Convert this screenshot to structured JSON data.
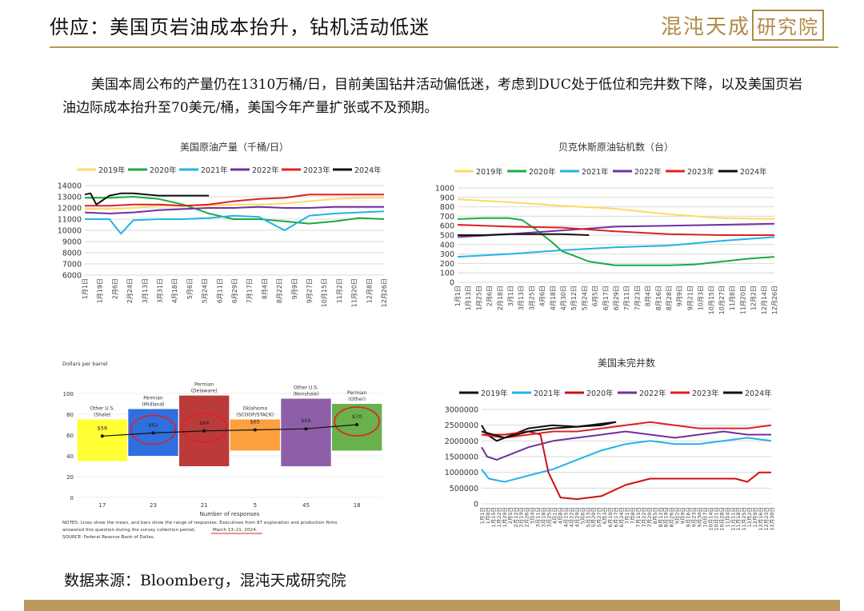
{
  "header": {
    "title": "供应：美国页岩油成本抬升，钻机活动低迷",
    "logo_main": "混沌天成",
    "logo_box": "研究院"
  },
  "paragraph": "美国本周公布的产量仍在1310万桶/日，目前美国钻井活动偏低迷，考虑到DUC处于低位和完井数下降，以及美国页岩油边际成本抬升至70美元/桶，美国今年产量扩张或不及预期。",
  "footer": {
    "source": "数据来源：Bloomberg，混沌天成研究院"
  },
  "colors": {
    "gold": "#b99a5c",
    "y2019": "#ffd966",
    "y2020": "#1aab40",
    "y2021": "#22b3e6",
    "y2022": "#7030a0",
    "y2023": "#dd2222",
    "y2024": "#111111"
  },
  "chart_data": [
    {
      "type": "line",
      "title": "美国原油产量（千桶/日）",
      "ylim": [
        6000,
        14000
      ],
      "yticks": [
        "14000",
        "13000",
        "12000",
        "11000",
        "10000",
        "9000",
        "8000",
        "7000",
        "6000"
      ],
      "xticks": [
        "1月1日",
        "1月19日",
        "2月6日",
        "2月24日",
        "3月13日",
        "3月31日",
        "4月18日",
        "5月6日",
        "5月24日",
        "6月11日",
        "6月29日",
        "7月17日",
        "8月4日",
        "8月22日",
        "9月9日",
        "9月27日",
        "10月15日",
        "11月2日",
        "11月20日",
        "12月8日",
        "12月26日"
      ],
      "x_start": "1月1日",
      "x_end": "12月31日",
      "series": [
        {
          "name": "2019年",
          "color": "#ffd966",
          "x": [
            1,
            31,
            60,
            91,
            121,
            152,
            182,
            213,
            244,
            274,
            305,
            335,
            365
          ],
          "y": [
            11900,
            11900,
            12000,
            12200,
            12200,
            12200,
            12300,
            12300,
            12400,
            12600,
            12800,
            12900,
            12900
          ]
        },
        {
          "name": "2020年",
          "color": "#1aab40",
          "x": [
            1,
            31,
            60,
            91,
            121,
            152,
            182,
            213,
            244,
            274,
            305,
            335,
            365
          ],
          "y": [
            12900,
            12900,
            13000,
            12800,
            12300,
            11500,
            11000,
            11000,
            10800,
            10600,
            10800,
            11100,
            11000
          ]
        },
        {
          "name": "2021年",
          "color": "#22b3e6",
          "x": [
            1,
            31,
            45,
            60,
            91,
            121,
            152,
            182,
            213,
            244,
            274,
            305,
            335,
            365
          ],
          "y": [
            11000,
            11000,
            9700,
            10900,
            11000,
            11000,
            11100,
            11300,
            11200,
            10000,
            11300,
            11500,
            11600,
            11700
          ]
        },
        {
          "name": "2022年",
          "color": "#7030a0",
          "x": [
            1,
            31,
            60,
            91,
            121,
            152,
            182,
            213,
            244,
            274,
            305,
            335,
            365
          ],
          "y": [
            11600,
            11500,
            11600,
            11800,
            11900,
            12000,
            12000,
            12100,
            12000,
            12000,
            12100,
            12100,
            12100
          ]
        },
        {
          "name": "2023年",
          "color": "#dd2222",
          "x": [
            1,
            31,
            60,
            91,
            121,
            152,
            182,
            213,
            244,
            274,
            305,
            335,
            365
          ],
          "y": [
            12200,
            12200,
            12300,
            12300,
            12200,
            12300,
            12600,
            12800,
            12900,
            13200,
            13200,
            13200,
            13200
          ]
        },
        {
          "name": "2024年",
          "color": "#111111",
          "x": [
            1,
            8,
            15,
            31,
            45,
            60,
            91,
            121,
            152
          ],
          "y": [
            13200,
            13300,
            12300,
            13100,
            13300,
            13300,
            13100,
            13100,
            13100
          ]
        }
      ]
    },
    {
      "type": "line",
      "title": "贝克休斯原油钻机数（台）",
      "ylim": [
        0,
        1000
      ],
      "yticks": [
        "1000",
        "900",
        "800",
        "700",
        "600",
        "500",
        "400",
        "300",
        "200",
        "100",
        "0"
      ],
      "xticks": [
        "1月1日",
        "1月13日",
        "1月25日",
        "2月6日",
        "2月18日",
        "3月1日",
        "3月13日",
        "3月25日",
        "4月6日",
        "4月18日",
        "4月30日",
        "5月12日",
        "5月24日",
        "6月5日",
        "6月17日",
        "6月29日",
        "7月11日",
        "7月23日",
        "8月4日",
        "8月16日",
        "8月28日",
        "9月9日",
        "9月21日",
        "10月3日",
        "10月15日",
        "10月27日",
        "11月8日",
        "11月20日",
        "12月2日",
        "12月14日",
        "12月26日"
      ],
      "x_start": "1月1日",
      "x_end": "12月31日",
      "series": [
        {
          "name": "2019年",
          "color": "#ffd966",
          "x": [
            1,
            60,
            121,
            182,
            244,
            305,
            365
          ],
          "y": [
            880,
            850,
            810,
            780,
            720,
            680,
            670
          ]
        },
        {
          "name": "2020年",
          "color": "#1aab40",
          "x": [
            1,
            31,
            60,
            75,
            91,
            110,
            121,
            152,
            182,
            213,
            244,
            274,
            305,
            335,
            365
          ],
          "y": [
            670,
            680,
            680,
            660,
            560,
            420,
            330,
            220,
            180,
            180,
            180,
            190,
            220,
            250,
            270
          ]
        },
        {
          "name": "2021年",
          "color": "#22b3e6",
          "x": [
            1,
            60,
            121,
            182,
            244,
            305,
            365
          ],
          "y": [
            270,
            300,
            340,
            370,
            390,
            440,
            480
          ]
        },
        {
          "name": "2022年",
          "color": "#7030a0",
          "x": [
            1,
            60,
            121,
            182,
            244,
            305,
            365
          ],
          "y": [
            480,
            510,
            550,
            590,
            600,
            610,
            620
          ]
        },
        {
          "name": "2023年",
          "color": "#dd2222",
          "x": [
            1,
            60,
            121,
            182,
            244,
            305,
            365
          ],
          "y": [
            610,
            590,
            580,
            540,
            510,
            500,
            500
          ]
        },
        {
          "name": "2024年",
          "color": "#111111",
          "x": [
            1,
            31,
            60,
            91,
            121,
            152
          ],
          "y": [
            500,
            500,
            510,
            510,
            510,
            500
          ]
        }
      ]
    },
    {
      "type": "bar",
      "ylabel": "Dollars per barrel",
      "xlabel": "Number of responses",
      "ylim": [
        0,
        100
      ],
      "yticks": [
        "100",
        "80",
        "60",
        "40",
        "20",
        "0"
      ],
      "categories": [
        "17",
        "23",
        "21",
        "5",
        "45",
        "18"
      ],
      "bar_labels": [
        "Other U.S.\n(Shale)",
        "Permian\n(Midland)",
        "Permian\n(Delaware)",
        "Oklahoma\n(SCOOP/STACK)",
        "Other U.S.\n(Nonshale)",
        "Permian\n(Other)"
      ],
      "bar_colors": [
        "#ffff33",
        "#2f6fdf",
        "#bb3b3b",
        "#ffa040",
        "#8e5fa8",
        "#6ab04c"
      ],
      "ranges": [
        [
          35,
          75
        ],
        [
          40,
          85
        ],
        [
          30,
          98
        ],
        [
          45,
          75
        ],
        [
          30,
          95
        ],
        [
          45,
          90
        ]
      ],
      "means": [
        59,
        62,
        64,
        65,
        66,
        70
      ],
      "mean_labels": [
        "$59",
        "$62",
        "$64",
        "$65",
        "$66",
        "$70"
      ],
      "highlighted_means": [
        "$62",
        "$64",
        "$70"
      ],
      "notes": [
        "NOTES: Lines show the mean, and bars show the range of responses. Executives from 87 exploration and production firms",
        "answered this question during the survey collection period,",
        "March 13–21, 2024.",
        "SOURCE: Federal Reserve Bank of Dallas."
      ]
    },
    {
      "type": "line",
      "title": "美国未完井数",
      "ylim": [
        0,
        3000000
      ],
      "yticks": [
        "3000000",
        "2500000",
        "2000000",
        "1500000",
        "1000000",
        "500000",
        "0"
      ],
      "xticks": [
        "1月1日",
        "1月8日",
        "1月15日",
        "1月22日",
        "1月29日",
        "2月5日",
        "2月12日",
        "2月19日",
        "2月26日",
        "3月4日",
        "3月11日",
        "3月18日",
        "3月25日",
        "4月1日",
        "4月8日",
        "4月15日",
        "4月22日",
        "4月29日",
        "5月6日",
        "5月13日",
        "5月20日",
        "5月27日",
        "6月3日",
        "6月10日",
        "6月17日",
        "6月24日",
        "7月1日",
        "7月8日",
        "7月15日",
        "7月22日",
        "7月29日",
        "8月5日",
        "8月12日",
        "8月19日",
        "8月26日",
        "9月2日",
        "9月9日",
        "9月16日",
        "9月23日",
        "9月30日",
        "10月7日",
        "10月14日",
        "10月21日",
        "10月28日",
        "11月4日",
        "11月11日",
        "11月18日",
        "11月25日",
        "12月2日",
        "12月9日",
        "12月16日",
        "12月23日",
        "12月30日"
      ],
      "x_start": "1月1日",
      "x_end": "12月31日",
      "series": [
        {
          "name": "2019年",
          "color": "#111111",
          "x": [
            1,
            8,
            20,
            40,
            60,
            90,
            121,
            152,
            170
          ],
          "y": [
            2500000,
            2200000,
            2000000,
            2200000,
            2400000,
            2500000,
            2450000,
            2500000,
            2600000
          ]
        },
        {
          "name": "2021年",
          "color": "#22b3e6",
          "x": [
            1,
            10,
            30,
            60,
            91,
            121,
            152,
            182,
            213,
            244,
            274,
            305,
            335,
            365
          ],
          "y": [
            1100000,
            800000,
            700000,
            900000,
            1100000,
            1400000,
            1700000,
            1900000,
            2000000,
            1900000,
            1900000,
            2000000,
            2100000,
            2000000
          ]
        },
        {
          "name": "2020年",
          "color": "#cc1111",
          "x": [
            1,
            30,
            60,
            75,
            85,
            100,
            121,
            152,
            182,
            213,
            244,
            274,
            305,
            320,
            335,
            350,
            365
          ],
          "y": [
            2200000,
            2200000,
            2300000,
            2200000,
            1000000,
            200000,
            150000,
            250000,
            600000,
            800000,
            800000,
            800000,
            800000,
            800000,
            700000,
            1000000,
            1000000
          ]
        },
        {
          "name": "2022年",
          "color": "#7030a0",
          "x": [
            1,
            8,
            20,
            40,
            60,
            91,
            121,
            152,
            182,
            213,
            244,
            274,
            305,
            335,
            365
          ],
          "y": [
            1800000,
            1500000,
            1400000,
            1600000,
            1800000,
            2000000,
            2100000,
            2200000,
            2300000,
            2200000,
            2100000,
            2200000,
            2300000,
            2200000,
            2200000
          ]
        },
        {
          "name": "2023年",
          "color": "#dd2222",
          "x": [
            1,
            30,
            60,
            91,
            121,
            152,
            182,
            213,
            244,
            274,
            305,
            335,
            365
          ],
          "y": [
            2200000,
            2100000,
            2200000,
            2300000,
            2300000,
            2400000,
            2500000,
            2600000,
            2500000,
            2400000,
            2400000,
            2400000,
            2500000
          ]
        },
        {
          "name": "2024年",
          "color": "#111111",
          "x": [
            1,
            30,
            60,
            91,
            121,
            152,
            170
          ],
          "y": [
            2300000,
            2100000,
            2300000,
            2400000,
            2450000,
            2550000,
            2600000
          ]
        }
      ]
    }
  ]
}
